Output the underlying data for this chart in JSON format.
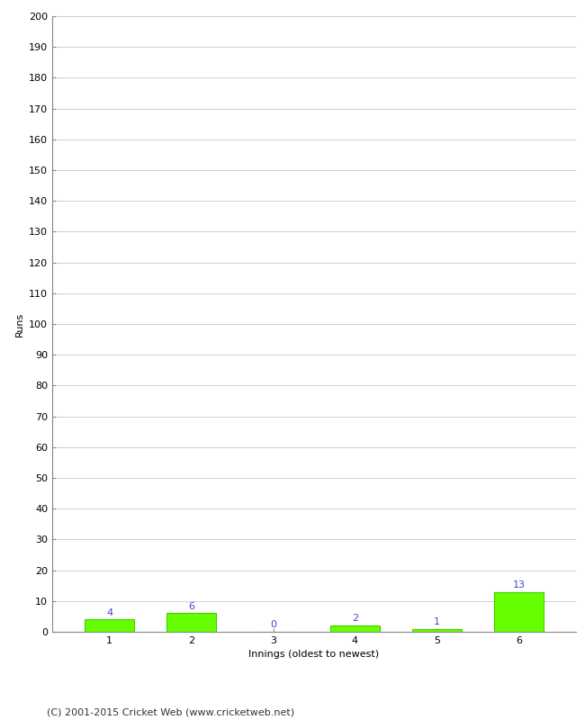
{
  "innings": [
    1,
    2,
    3,
    4,
    5,
    6
  ],
  "runs": [
    4,
    6,
    0,
    2,
    1,
    13
  ],
  "bar_color": "#66ff00",
  "bar_edge_color": "#44cc00",
  "label_color": "#4444cc",
  "xlabel": "Innings (oldest to newest)",
  "ylabel": "Runs",
  "ylim": [
    0,
    200
  ],
  "yticks": [
    0,
    10,
    20,
    30,
    40,
    50,
    60,
    70,
    80,
    90,
    100,
    110,
    120,
    130,
    140,
    150,
    160,
    170,
    180,
    190,
    200
  ],
  "background_color": "#ffffff",
  "footer": "(C) 2001-2015 Cricket Web (www.cricketweb.net)",
  "grid_color": "#d0d0d0",
  "spine_color": "#888888",
  "tick_label_fontsize": 8,
  "axis_label_fontsize": 8,
  "footer_fontsize": 8,
  "value_label_fontsize": 8
}
